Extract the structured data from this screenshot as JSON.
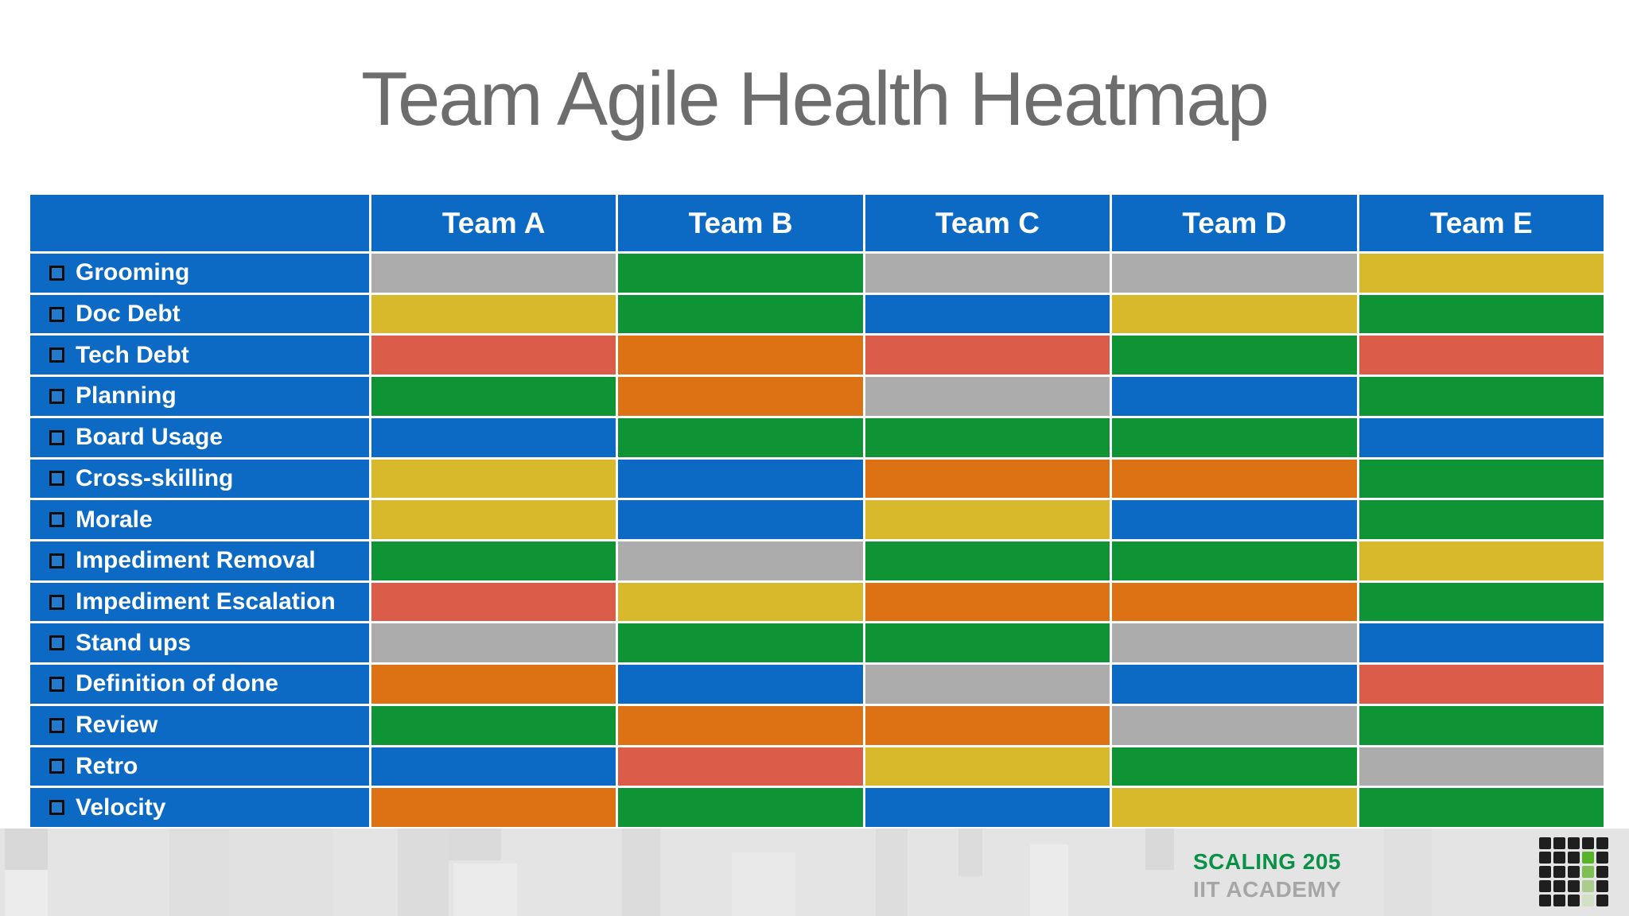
{
  "page": {
    "title": "Team Agile Health Heatmap"
  },
  "chart_data": {
    "type": "heatmap",
    "title": "Team Agile Health Heatmap",
    "columns": [
      "Team A",
      "Team B",
      "Team C",
      "Team D",
      "Team E"
    ],
    "rows": [
      "Grooming",
      "Doc Debt",
      "Tech Debt",
      "Planning",
      "Board Usage",
      "Cross-skilling",
      "Morale",
      "Impediment Removal",
      "Impediment Escalation",
      "Stand ups",
      "Definition of done",
      "Review",
      "Retro",
      "Velocity"
    ],
    "values": [
      [
        "gray",
        "green",
        "gray",
        "gray",
        "yellow"
      ],
      [
        "yellow",
        "green",
        "blue",
        "yellow",
        "green"
      ],
      [
        "red",
        "orange",
        "red",
        "green",
        "red"
      ],
      [
        "green",
        "orange",
        "gray",
        "blue",
        "green"
      ],
      [
        "blue",
        "green",
        "green",
        "green",
        "blue"
      ],
      [
        "yellow",
        "blue",
        "orange",
        "orange",
        "green"
      ],
      [
        "yellow",
        "blue",
        "yellow",
        "blue",
        "green"
      ],
      [
        "green",
        "gray",
        "green",
        "green",
        "yellow"
      ],
      [
        "red",
        "yellow",
        "orange",
        "orange",
        "green"
      ],
      [
        "gray",
        "green",
        "green",
        "gray",
        "blue"
      ],
      [
        "orange",
        "blue",
        "gray",
        "blue",
        "red"
      ],
      [
        "green",
        "orange",
        "orange",
        "gray",
        "green"
      ],
      [
        "blue",
        "red",
        "yellow",
        "green",
        "gray"
      ],
      [
        "orange",
        "green",
        "blue",
        "yellow",
        "green"
      ]
    ],
    "palette": {
      "blue": "#0d6ac4",
      "green": "#0e9434",
      "yellow": "#d8b92b",
      "orange": "#dd7214",
      "red": "#db5c48",
      "gray": "#abacab"
    },
    "header_bg": "#0d6ac4",
    "row_label_bg": "#0d6ac4",
    "grid_line_color": "#ffffff",
    "legend": "none"
  },
  "footer": {
    "course": "SCALING 205",
    "course_color": "#0a9148",
    "org": "IIT ACADEMY",
    "org_color": "#a6a6a6",
    "logo": {
      "dark": "#1f1f1f",
      "greens": [
        "#56b32a",
        "#7fbe53",
        "#aacd8c",
        "#d4e0c6"
      ],
      "matrix": [
        [
          "k",
          "k",
          "k",
          "k",
          "k"
        ],
        [
          "k",
          "k",
          "k",
          "g0",
          "k"
        ],
        [
          "k",
          "k",
          "k",
          "g1",
          "k"
        ],
        [
          "k",
          "k",
          "k",
          "g2",
          "k"
        ],
        [
          "k",
          "k",
          "k",
          "g3",
          "k"
        ]
      ]
    }
  }
}
